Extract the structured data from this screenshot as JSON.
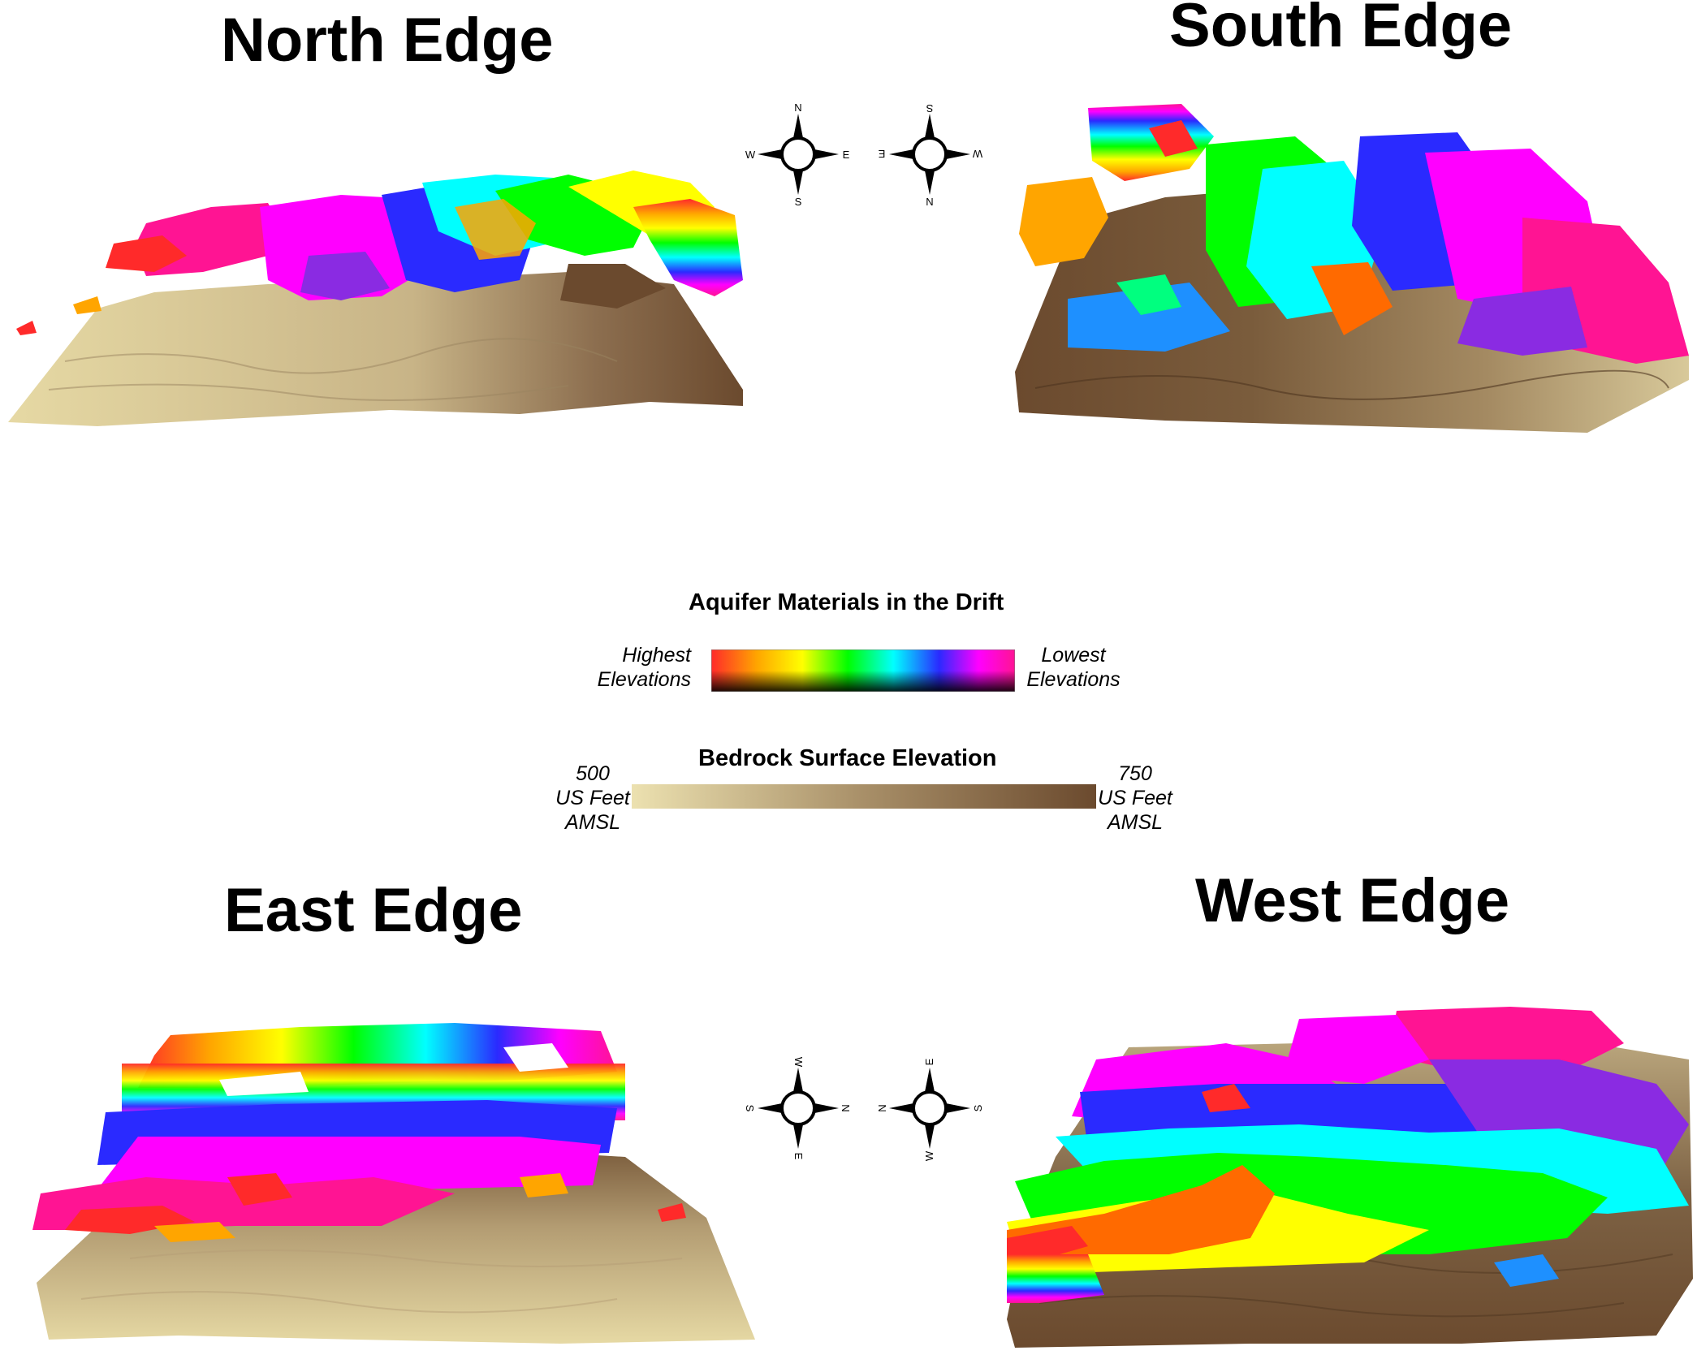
{
  "panels": {
    "north": {
      "title": "North Edge"
    },
    "south": {
      "title": "South Edge"
    },
    "east": {
      "title": "East Edge"
    },
    "west": {
      "title": "West Edge"
    }
  },
  "compasses": [
    {
      "top": "N",
      "bottom": "S",
      "left": "W",
      "right": "E"
    },
    {
      "top": "S",
      "bottom": "N",
      "left": "E",
      "right": "W"
    },
    {
      "top": "W",
      "bottom": "E",
      "left": "S",
      "right": "N"
    },
    {
      "top": "E",
      "bottom": "W",
      "left": "N",
      "right": "S"
    }
  ],
  "legend": {
    "aquifer": {
      "title": "Aquifer Materials in the Drift",
      "left_line1": "Highest",
      "left_line2": "Elevations",
      "right_line1": "Lowest",
      "right_line2": "Elevations",
      "colors": [
        "#ff2a2a",
        "#ffa500",
        "#ffff00",
        "#00ff00",
        "#00ffff",
        "#2a2aff",
        "#ff00ff",
        "#ff1493"
      ]
    },
    "bedrock": {
      "title": "Bedrock Surface Elevation",
      "min_line1": "500",
      "min_line2": "US Feet",
      "min_line3": "AMSL",
      "max_line1": "750",
      "max_line2": "US Feet",
      "max_line3": "AMSL",
      "min_value": 500,
      "max_value": 750,
      "color_low": "#ece1b0",
      "color_high": "#6b4a2e"
    }
  }
}
